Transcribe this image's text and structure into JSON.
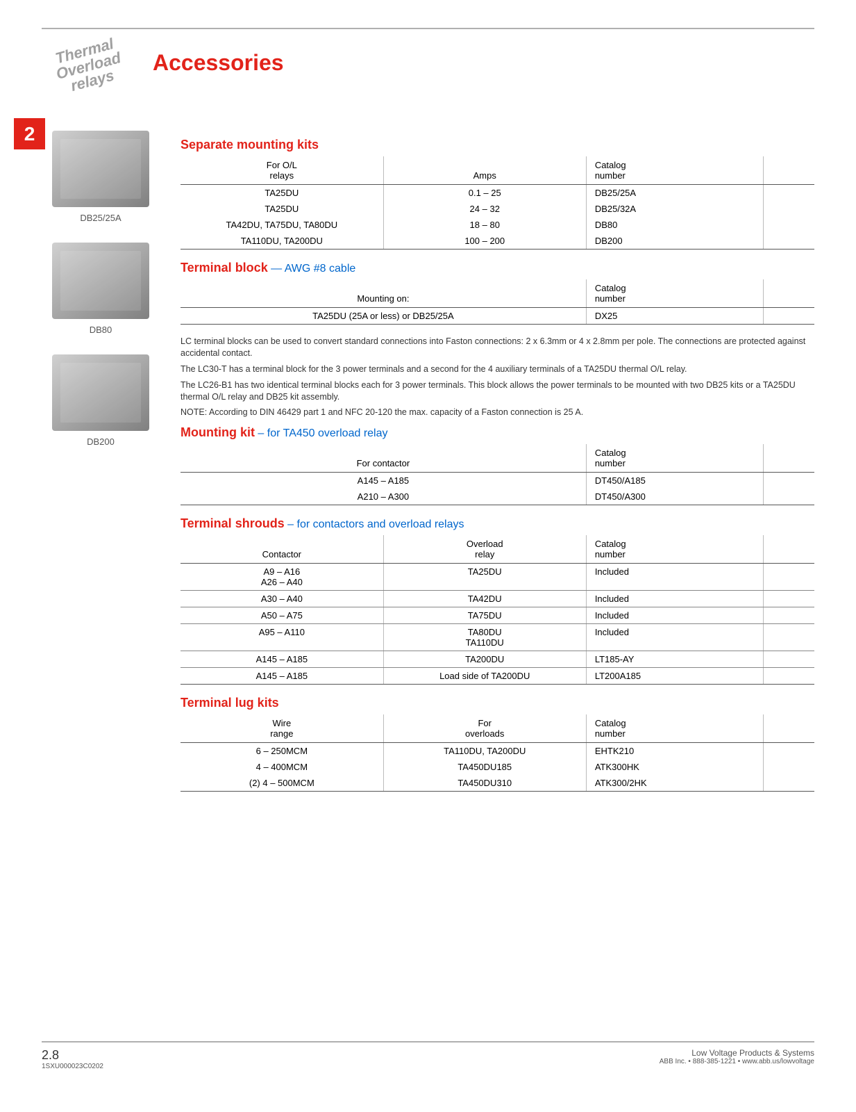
{
  "badge": {
    "l1": "Thermal",
    "l2": "Overload",
    "l3": "relays"
  },
  "title": "Accessories",
  "section_num": "2",
  "thumbs": [
    {
      "caption": "DB25/25A"
    },
    {
      "caption": "DB80"
    },
    {
      "caption": "DB200"
    }
  ],
  "sect1": {
    "heading": "Separate mounting kits",
    "cols": [
      "For O/L\nrelays",
      "Amps",
      "Catalog\nnumber"
    ],
    "rows": [
      [
        "TA25DU",
        "0.1 – 25",
        "DB25/25A"
      ],
      [
        "TA25DU",
        "24 – 32",
        "DB25/32A"
      ],
      [
        "TA42DU, TA75DU, TA80DU",
        "18 – 80",
        "DB80"
      ],
      [
        "TA110DU, TA200DU",
        "100 – 200",
        "DB200"
      ]
    ]
  },
  "sect2": {
    "heading": "Terminal block",
    "sub": " — AWG #8 cable",
    "cols": [
      "Mounting on:",
      "Catalog\nnumber"
    ],
    "rows": [
      [
        "TA25DU (25A or less) or DB25/25A",
        "DX25"
      ]
    ],
    "notes": [
      "LC terminal blocks can be used to convert standard connections into Faston connections: 2 x 6.3mm or 4 x 2.8mm per pole. The connections are protected against accidental contact.",
      "The LC30-T has a terminal block for the 3 power terminals and a second for the 4 auxiliary terminals of a TA25DU thermal O/L relay.",
      "The LC26-B1 has two identical terminal blocks each for 3 power terminals. This block allows the power terminals to be mounted with two DB25 kits or a TA25DU thermal O/L relay and DB25 kit assembly.",
      "NOTE: According to DIN 46429 part 1 and NFC 20-120 the max. capacity of a Faston connection is 25 A."
    ]
  },
  "sect3": {
    "heading": "Mounting kit",
    "sub": " – for TA450 overload relay",
    "cols": [
      "For contactor",
      "Catalog\nnumber"
    ],
    "rows": [
      [
        "A145 – A185",
        "DT450/A185"
      ],
      [
        "A210 – A300",
        "DT450/A300"
      ]
    ]
  },
  "sect4": {
    "heading": "Terminal shrouds",
    "sub": " – for contactors and overload relays",
    "cols": [
      "Contactor",
      "Overload\nrelay",
      "Catalog\nnumber"
    ],
    "rows": [
      [
        "A9 – A16\nA26 – A40",
        "TA25DU",
        "Included"
      ],
      [
        "A30 – A40",
        "TA42DU",
        "Included"
      ],
      [
        "A50 – A75",
        "TA75DU",
        "Included"
      ],
      [
        "A95 – A110",
        "TA80DU\nTA110DU",
        "Included"
      ],
      [
        "A145 – A185",
        "TA200DU",
        "LT185-AY"
      ],
      [
        "A145 – A185",
        "Load side of TA200DU",
        "LT200A185"
      ]
    ]
  },
  "sect5": {
    "heading": "Terminal lug kits",
    "cols": [
      "Wire\nrange",
      "For\noverloads",
      "Catalog\nnumber"
    ],
    "rows": [
      [
        "6 – 250MCM",
        "TA110DU, TA200DU",
        "EHTK210"
      ],
      [
        "4 – 400MCM",
        "TA450DU185",
        "ATK300HK"
      ],
      [
        "(2) 4 – 500MCM",
        "TA450DU310",
        "ATK300/2HK"
      ]
    ]
  },
  "footer": {
    "page": "2.8",
    "cat": "1SXU000023C0202",
    "r1": "Low Voltage Products & Systems",
    "r2": "ABB Inc. • 888-385-1221 • www.abb.us/lowvoltage"
  }
}
